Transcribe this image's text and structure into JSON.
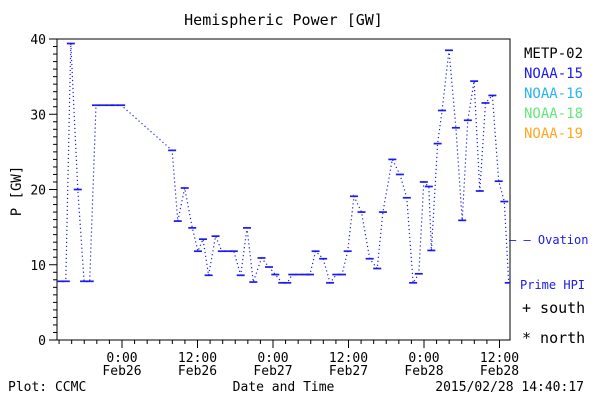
{
  "window": {
    "background": "#ffffff",
    "text_color": "#000000"
  },
  "chart": {
    "title": "Hemispheric Power [GW]",
    "ylabel": "P [GW]",
    "xlabel": "Date and Time",
    "footer_left": "Plot: CCMC",
    "footer_right": "2015/02/28 14:40:17"
  },
  "legend": {
    "satellites": [
      {
        "label": "METP-02",
        "color": "#000000"
      },
      {
        "label": "NOAA-15",
        "color": "#1a1aee"
      },
      {
        "label": "NOAA-16",
        "color": "#28b4f0"
      },
      {
        "label": "NOAA-18",
        "color": "#62e878"
      },
      {
        "label": "NOAA-19",
        "color": "#ffa81e"
      }
    ],
    "ovation": {
      "line1": "— — Ovation",
      "line2": "Prime HPI",
      "color": "#1a1aee"
    },
    "south_marker": "+ south",
    "north_marker": "* north"
  },
  "chart_data": {
    "type": "line",
    "title": "Hemispheric Power [GW]",
    "xlabel": "Date and Time",
    "ylabel": "P [GW]",
    "series_name": "Ovation Prime HPI",
    "line_color": "#1a1aee",
    "marker": "dash",
    "connector": "dotted",
    "grid": "off",
    "ylim": [
      0,
      40
    ],
    "y_major_ticks": [
      0,
      10,
      20,
      30,
      40
    ],
    "y_minor_step_gw": 1,
    "x_hours_range": [
      0,
      72
    ],
    "x_axis_start": "Feb25 ~13:40",
    "x_minor_step_hours": 2,
    "x_major_ticks": [
      {
        "hour": 10.33,
        "time": "0:00",
        "date": "Feb26"
      },
      {
        "hour": 22.33,
        "time": "12:00",
        "date": "Feb26"
      },
      {
        "hour": 34.33,
        "time": "0:00",
        "date": "Feb27"
      },
      {
        "hour": 46.33,
        "time": "12:00",
        "date": "Feb27"
      },
      {
        "hour": 58.33,
        "time": "0:00",
        "date": "Feb28"
      },
      {
        "hour": 70.33,
        "time": "12:00",
        "date": "Feb28"
      }
    ],
    "points_hours_gw": [
      [
        0.5,
        7.8
      ],
      [
        1.4,
        7.8
      ],
      [
        2.2,
        39.4
      ],
      [
        3.3,
        20.0
      ],
      [
        4.3,
        7.8
      ],
      [
        5.2,
        7.8
      ],
      [
        6.2,
        31.2
      ],
      [
        7.3,
        31.2
      ],
      [
        8.4,
        31.2
      ],
      [
        9.2,
        31.2
      ],
      [
        10.2,
        31.2
      ],
      [
        18.3,
        25.2
      ],
      [
        19.2,
        15.8
      ],
      [
        20.3,
        20.2
      ],
      [
        21.5,
        14.9
      ],
      [
        22.4,
        11.8
      ],
      [
        23.2,
        13.4
      ],
      [
        24.1,
        8.6
      ],
      [
        25.2,
        13.8
      ],
      [
        26.2,
        11.8
      ],
      [
        27.2,
        11.8
      ],
      [
        28.1,
        11.8
      ],
      [
        29.2,
        8.6
      ],
      [
        30.2,
        14.9
      ],
      [
        31.2,
        7.7
      ],
      [
        32.5,
        10.9
      ],
      [
        33.7,
        9.7
      ],
      [
        34.7,
        8.7
      ],
      [
        35.8,
        7.6
      ],
      [
        36.6,
        7.6
      ],
      [
        37.4,
        8.7
      ],
      [
        38.5,
        8.7
      ],
      [
        39.6,
        8.7
      ],
      [
        40.2,
        8.7
      ],
      [
        41.1,
        11.8
      ],
      [
        42.3,
        10.8
      ],
      [
        43.4,
        7.6
      ],
      [
        44.4,
        8.7
      ],
      [
        45.3,
        8.7
      ],
      [
        46.2,
        11.8
      ],
      [
        47.2,
        19.1
      ],
      [
        48.4,
        17.0
      ],
      [
        49.7,
        10.8
      ],
      [
        50.9,
        9.5
      ],
      [
        51.8,
        17.0
      ],
      [
        53.3,
        24.0
      ],
      [
        54.5,
        22.0
      ],
      [
        55.6,
        18.9
      ],
      [
        56.6,
        7.6
      ],
      [
        57.5,
        8.8
      ],
      [
        58.3,
        21.0
      ],
      [
        59.1,
        20.4
      ],
      [
        59.5,
        11.9
      ],
      [
        60.5,
        26.1
      ],
      [
        61.2,
        30.5
      ],
      [
        62.3,
        38.5
      ],
      [
        63.4,
        28.2
      ],
      [
        64.4,
        15.9
      ],
      [
        65.3,
        29.2
      ],
      [
        66.3,
        34.4
      ],
      [
        67.2,
        19.8
      ],
      [
        68.1,
        31.5
      ],
      [
        69.2,
        32.5
      ],
      [
        70.2,
        21.1
      ],
      [
        71.1,
        18.4
      ],
      [
        71.8,
        7.6
      ]
    ]
  }
}
